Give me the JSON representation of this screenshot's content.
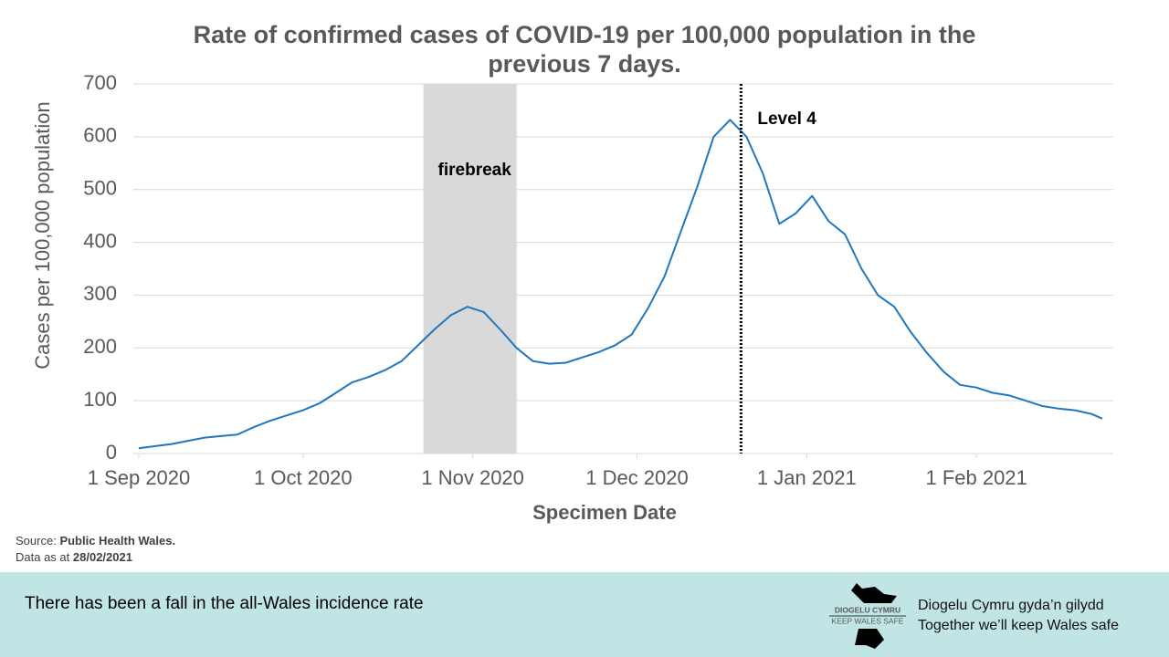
{
  "chart_data": {
    "type": "line",
    "title": "Rate of confirmed cases of COVID-19 per 100,000 population in the previous 7 days.",
    "x_label": "Specimen Date",
    "y_label": "Cases per 100,000 population",
    "color": "#1f77bf",
    "x": [
      "2020-09-01",
      "2020-09-04",
      "2020-09-07",
      "2020-09-10",
      "2020-09-13",
      "2020-09-16",
      "2020-09-19",
      "2020-09-22",
      "2020-09-25",
      "2020-09-28",
      "2020-10-01",
      "2020-10-04",
      "2020-10-07",
      "2020-10-10",
      "2020-10-13",
      "2020-10-16",
      "2020-10-19",
      "2020-10-22",
      "2020-10-25",
      "2020-10-28",
      "2020-10-31",
      "2020-11-03",
      "2020-11-06",
      "2020-11-09",
      "2020-11-12",
      "2020-11-15",
      "2020-11-18",
      "2020-11-21",
      "2020-11-24",
      "2020-11-27",
      "2020-11-30",
      "2020-12-03",
      "2020-12-06",
      "2020-12-09",
      "2020-12-12",
      "2020-12-15",
      "2020-12-18",
      "2020-12-21",
      "2020-12-24",
      "2020-12-27",
      "2020-12-30",
      "2021-01-02",
      "2021-01-05",
      "2021-01-08",
      "2021-01-11",
      "2021-01-14",
      "2021-01-17",
      "2021-01-20",
      "2021-01-23",
      "2021-01-26",
      "2021-01-29",
      "2021-02-01",
      "2021-02-04",
      "2021-02-07",
      "2021-02-10",
      "2021-02-13",
      "2021-02-16",
      "2021-02-19",
      "2021-02-22",
      "2021-02-24"
    ],
    "values": [
      10,
      14,
      18,
      24,
      30,
      33,
      36,
      50,
      62,
      72,
      82,
      95,
      115,
      135,
      145,
      158,
      175,
      205,
      235,
      262,
      278,
      268,
      235,
      200,
      175,
      170,
      172,
      182,
      192,
      205,
      225,
      275,
      335,
      420,
      505,
      600,
      632,
      600,
      530,
      435,
      455,
      488,
      440,
      415,
      350,
      300,
      278,
      230,
      190,
      155,
      130,
      125,
      115,
      110,
      100,
      90,
      85,
      82,
      75,
      66
    ],
    "xlim": [
      "2020-08-31",
      "2021-02-26"
    ],
    "xticks": [
      {
        "value": "2020-09-01",
        "label": "1 Sep 2020"
      },
      {
        "value": "2020-10-01",
        "label": "1 Oct 2020"
      },
      {
        "value": "2020-11-01",
        "label": "1 Nov 2020"
      },
      {
        "value": "2020-12-01",
        "label": "1 Dec 2020"
      },
      {
        "value": "2021-01-01",
        "label": "1 Jan 2021"
      },
      {
        "value": "2021-02-01",
        "label": "1 Feb 2021"
      }
    ],
    "ylim": [
      0,
      700
    ],
    "yticks": [
      0,
      100,
      200,
      300,
      400,
      500,
      600,
      700
    ],
    "grid": true,
    "shaded_periods": [
      {
        "label": "firebreak",
        "start": "2020-10-23",
        "end": "2020-11-09",
        "color": "#d9d9d9"
      }
    ],
    "vlines": [
      {
        "label": "Level 4",
        "x": "2020-12-20"
      }
    ]
  },
  "source": {
    "label": "Source:",
    "value": "Public Health Wales."
  },
  "data_date": {
    "label": "Data as at",
    "value": "28/02/2021"
  },
  "footer": {
    "text": "There has been a fall in the all-Wales incidence rate",
    "logo_top": "DIOGELU CYMRU",
    "logo_bottom": "KEEP WALES SAFE",
    "tagline_welsh": "Diogelu Cymru gyda’n gilydd",
    "tagline_english": "Together we’ll keep Wales safe"
  }
}
